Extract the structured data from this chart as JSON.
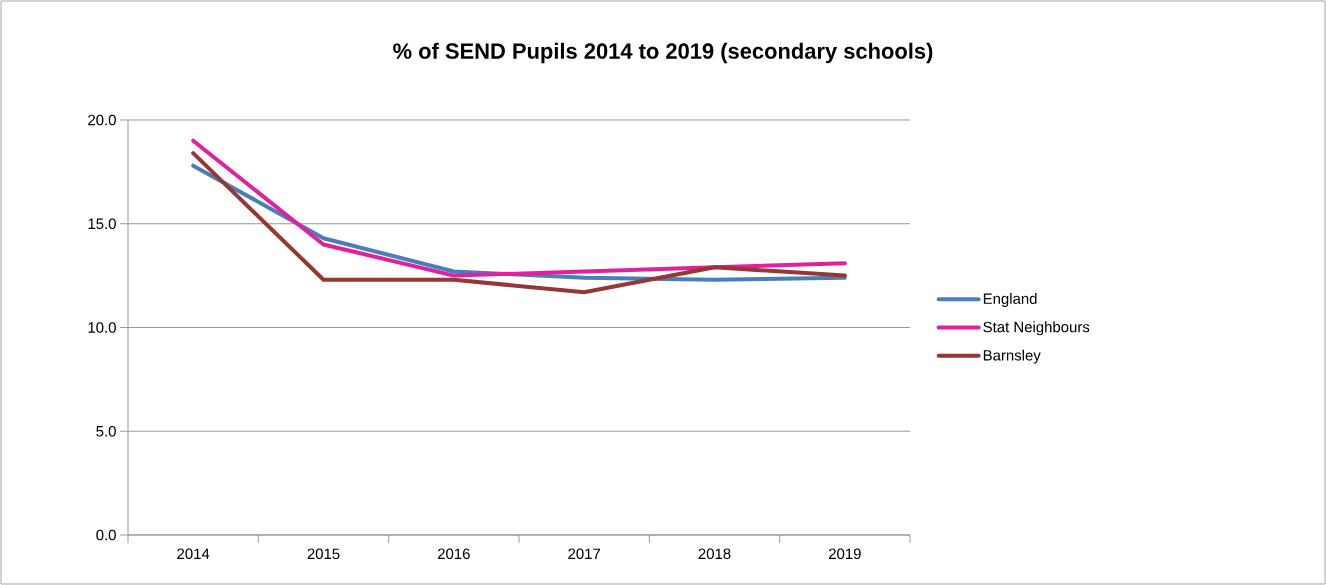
{
  "chart_data": {
    "type": "line",
    "title": "% of SEND Pupils 2014 to 2019 (secondary schools)",
    "categories": [
      "2014",
      "2015",
      "2016",
      "2017",
      "2018",
      "2019"
    ],
    "series": [
      {
        "name": "England",
        "color": "#4a7ebb",
        "values": [
          17.8,
          14.3,
          12.7,
          12.4,
          12.3,
          12.4
        ]
      },
      {
        "name": "Stat Neighbours",
        "color": "#e0209e",
        "values": [
          19.0,
          14.0,
          12.5,
          12.7,
          12.9,
          13.1
        ]
      },
      {
        "name": "Barnsley",
        "color": "#953735",
        "values": [
          18.4,
          12.3,
          12.3,
          11.7,
          12.9,
          12.5
        ]
      }
    ],
    "ylim": [
      0,
      20
    ],
    "yticks": [
      {
        "value": 0,
        "label": "0.0"
      },
      {
        "value": 5,
        "label": "5.0"
      },
      {
        "value": 10,
        "label": "10.0"
      },
      {
        "value": 15,
        "label": "15.0"
      },
      {
        "value": 20,
        "label": "20.0"
      }
    ],
    "grid": "y",
    "legend": "right",
    "marker": "none",
    "line_style": "solid"
  }
}
